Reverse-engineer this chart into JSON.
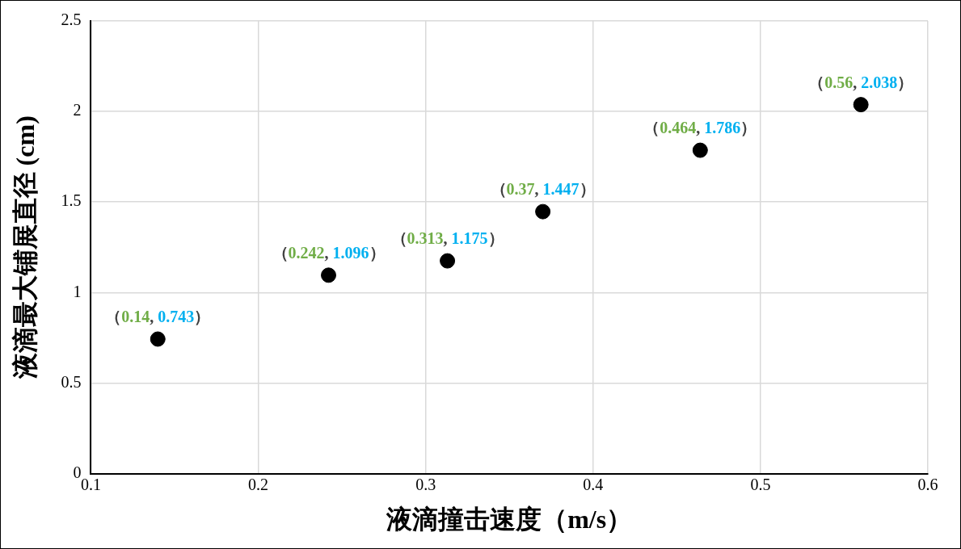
{
  "chart_data": {
    "type": "scatter",
    "xlabel": "液滴撞击速度（m/s）",
    "ylabel": "液滴最大铺展直径 (cm)",
    "x": [
      0.14,
      0.242,
      0.313,
      0.37,
      0.464,
      0.56
    ],
    "values": [
      0.743,
      1.096,
      1.175,
      1.447,
      1.786,
      2.038
    ],
    "color": "#000000",
    "marker": "circle",
    "value_labels": [
      "（0.14, 0.743）",
      "（0.242, 1.096）",
      "（0.313, 1.175）",
      "（0.37, 1.447）",
      "（0.464, 1.786）",
      "（0.56, 2.038）"
    ],
    "xlim": [
      0.1,
      0.6
    ],
    "xticks": [
      0.1,
      0.2,
      0.3,
      0.4,
      0.5,
      0.6
    ],
    "ylim": [
      0,
      2.5
    ],
    "yticks": [
      0,
      0.5,
      1,
      1.5,
      2,
      2.5
    ],
    "grid": true,
    "legend": false
  }
}
